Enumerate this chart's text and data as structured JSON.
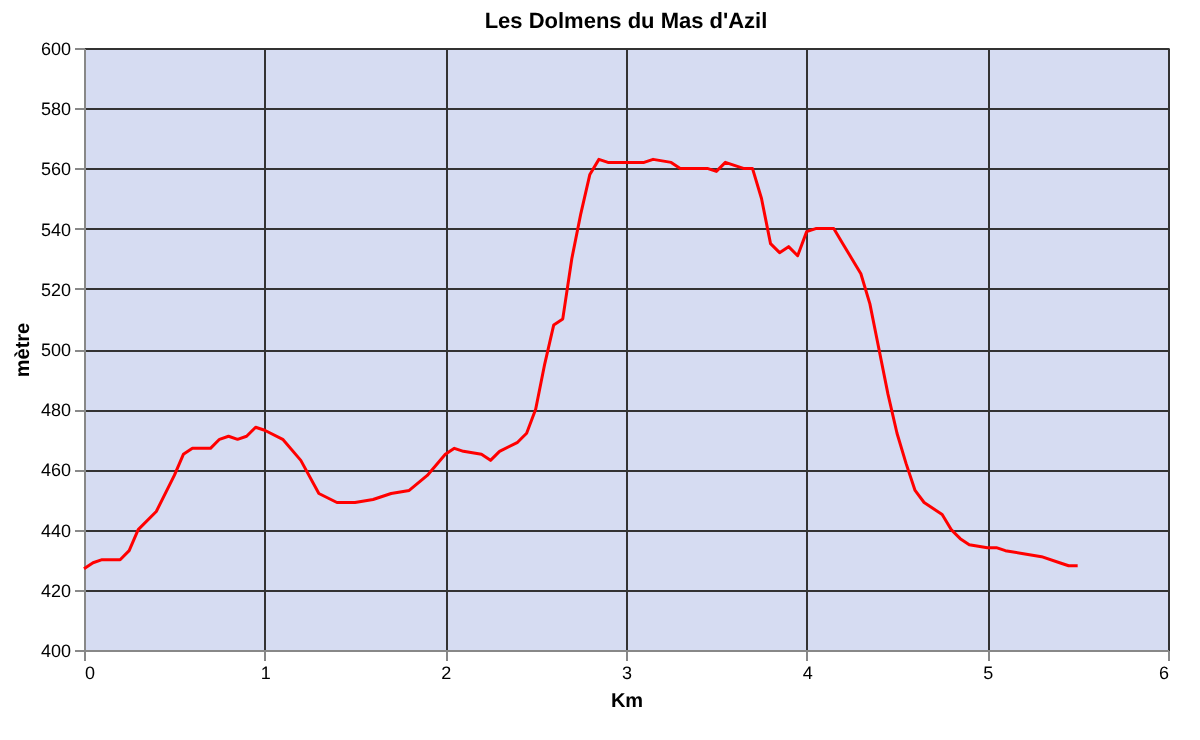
{
  "chart_data": {
    "type": "line",
    "title": "Les Dolmens du Mas d'Azil",
    "xlabel": "Km",
    "ylabel": "mètre",
    "x": [
      0,
      0.05,
      0.1,
      0.2,
      0.25,
      0.3,
      0.4,
      0.5,
      0.55,
      0.6,
      0.7,
      0.75,
      0.8,
      0.85,
      0.9,
      0.95,
      1.0,
      1.1,
      1.2,
      1.3,
      1.4,
      1.5,
      1.6,
      1.7,
      1.8,
      1.9,
      2.0,
      2.05,
      2.1,
      2.2,
      2.25,
      2.3,
      2.4,
      2.45,
      2.5,
      2.55,
      2.6,
      2.65,
      2.7,
      2.75,
      2.8,
      2.85,
      2.9,
      3.0,
      3.1,
      3.15,
      3.25,
      3.3,
      3.4,
      3.45,
      3.5,
      3.55,
      3.6,
      3.65,
      3.7,
      3.75,
      3.8,
      3.85,
      3.9,
      3.95,
      4.0,
      4.05,
      4.15,
      4.2,
      4.25,
      4.3,
      4.35,
      4.4,
      4.45,
      4.5,
      4.55,
      4.6,
      4.65,
      4.7,
      4.75,
      4.8,
      4.85,
      4.9,
      5.0,
      5.05,
      5.1,
      5.2,
      5.3,
      5.4,
      5.45,
      5.5
    ],
    "series": [
      {
        "color": "#ff0000",
        "values": [
          427,
          429,
          430,
          430,
          433,
          440,
          446,
          458,
          465,
          467,
          467,
          470,
          471,
          470,
          471,
          474,
          473,
          470,
          463,
          452,
          449,
          449,
          450,
          452,
          453,
          458,
          465,
          467,
          466,
          465,
          463,
          466,
          469,
          472,
          480,
          495,
          508,
          510,
          530,
          545,
          558,
          563,
          562,
          562,
          562,
          563,
          562,
          560,
          560,
          560,
          559,
          562,
          561,
          560,
          560,
          550,
          535,
          532,
          534,
          531,
          539,
          540,
          540,
          535,
          530,
          525,
          515,
          500,
          485,
          472,
          462,
          453,
          449,
          447,
          445,
          440,
          437,
          435,
          434,
          434,
          433,
          432,
          431,
          429,
          428,
          428
        ]
      }
    ],
    "xlim": [
      0,
      6
    ],
    "xticks": [
      0,
      1,
      2,
      3,
      4,
      5,
      6
    ],
    "ylim": [
      400,
      600
    ],
    "yticks": [
      400,
      420,
      440,
      460,
      480,
      500,
      520,
      540,
      560,
      580,
      600
    ],
    "grid": true,
    "marker": "none",
    "line_style": "solid"
  }
}
